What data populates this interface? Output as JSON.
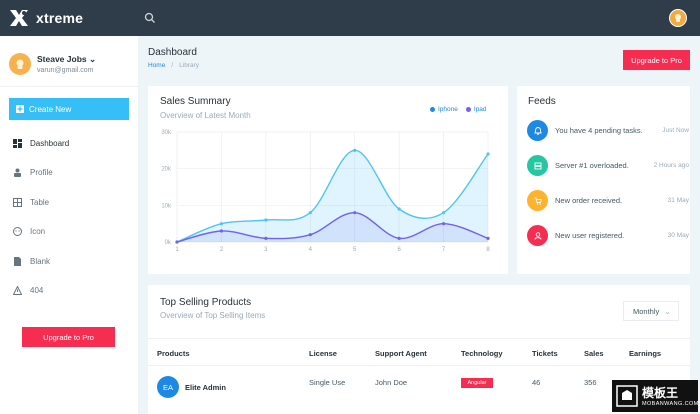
{
  "app": {
    "name": "xtreme"
  },
  "user": {
    "name": "Steave Jobs",
    "email": "varun@gmail.com"
  },
  "sidebar": {
    "create_label": "Create New",
    "items": [
      {
        "label": "Dashboard",
        "icon": "dashboard-icon"
      },
      {
        "label": "Profile",
        "icon": "profile-icon"
      },
      {
        "label": "Table",
        "icon": "table-icon"
      },
      {
        "label": "Icon",
        "icon": "face-icon"
      },
      {
        "label": "Blank",
        "icon": "file-icon"
      },
      {
        "label": "404",
        "icon": "alert-icon"
      }
    ],
    "upgrade_label": "Upgrade to Pro"
  },
  "page": {
    "title": "Dashboard",
    "breadcrumb": [
      "Home",
      "Library"
    ],
    "upgrade_label": "Upgrade to Pro"
  },
  "sales": {
    "title": "Sales Summary",
    "subtitle": "Overview of Latest Month",
    "chart_data": {
      "type": "area",
      "x": [
        1,
        2,
        3,
        4,
        5,
        6,
        7,
        8
      ],
      "ylim": [
        0,
        30
      ],
      "yticks": [
        "0k",
        "10k",
        "20k",
        "30k"
      ],
      "series": [
        {
          "name": "Iphone",
          "color": "#4fc3f7",
          "values": [
            0,
            5,
            6,
            8,
            25,
            9,
            8,
            24
          ]
        },
        {
          "name": "Ipad",
          "color": "#7460ee",
          "values": [
            0,
            3,
            1,
            2,
            8,
            1,
            5,
            1
          ]
        }
      ]
    }
  },
  "feeds": {
    "title": "Feeds",
    "items": [
      {
        "text": "You have 4 pending tasks.",
        "time": "Just Now",
        "color": "#1e88e5",
        "icon": "bell-icon"
      },
      {
        "text": "Server #1 overloaded.",
        "time": "2 Hours ago",
        "color": "#26c6a3",
        "icon": "server-icon"
      },
      {
        "text": "New order received.",
        "time": "31 May",
        "color": "#ffb22b",
        "icon": "cart-icon"
      },
      {
        "text": "New user registered.",
        "time": "30 May",
        "color": "#f62d51",
        "icon": "user-icon"
      }
    ]
  },
  "products": {
    "title": "Top Selling Products",
    "subtitle": "Overview of Top Selling Items",
    "filter": "Monthly",
    "columns": [
      "Products",
      "License",
      "Support Agent",
      "Technology",
      "Tickets",
      "Sales",
      "Earnings"
    ],
    "rows": [
      {
        "initials": "EA",
        "name": "Elite Admin",
        "license": "Single Use",
        "agent": "John Doe",
        "tech": "Angular",
        "tickets": "46",
        "sales": "356"
      }
    ]
  },
  "watermark": {
    "line1": "模板王",
    "line2": "MOBANWANG.COM"
  }
}
